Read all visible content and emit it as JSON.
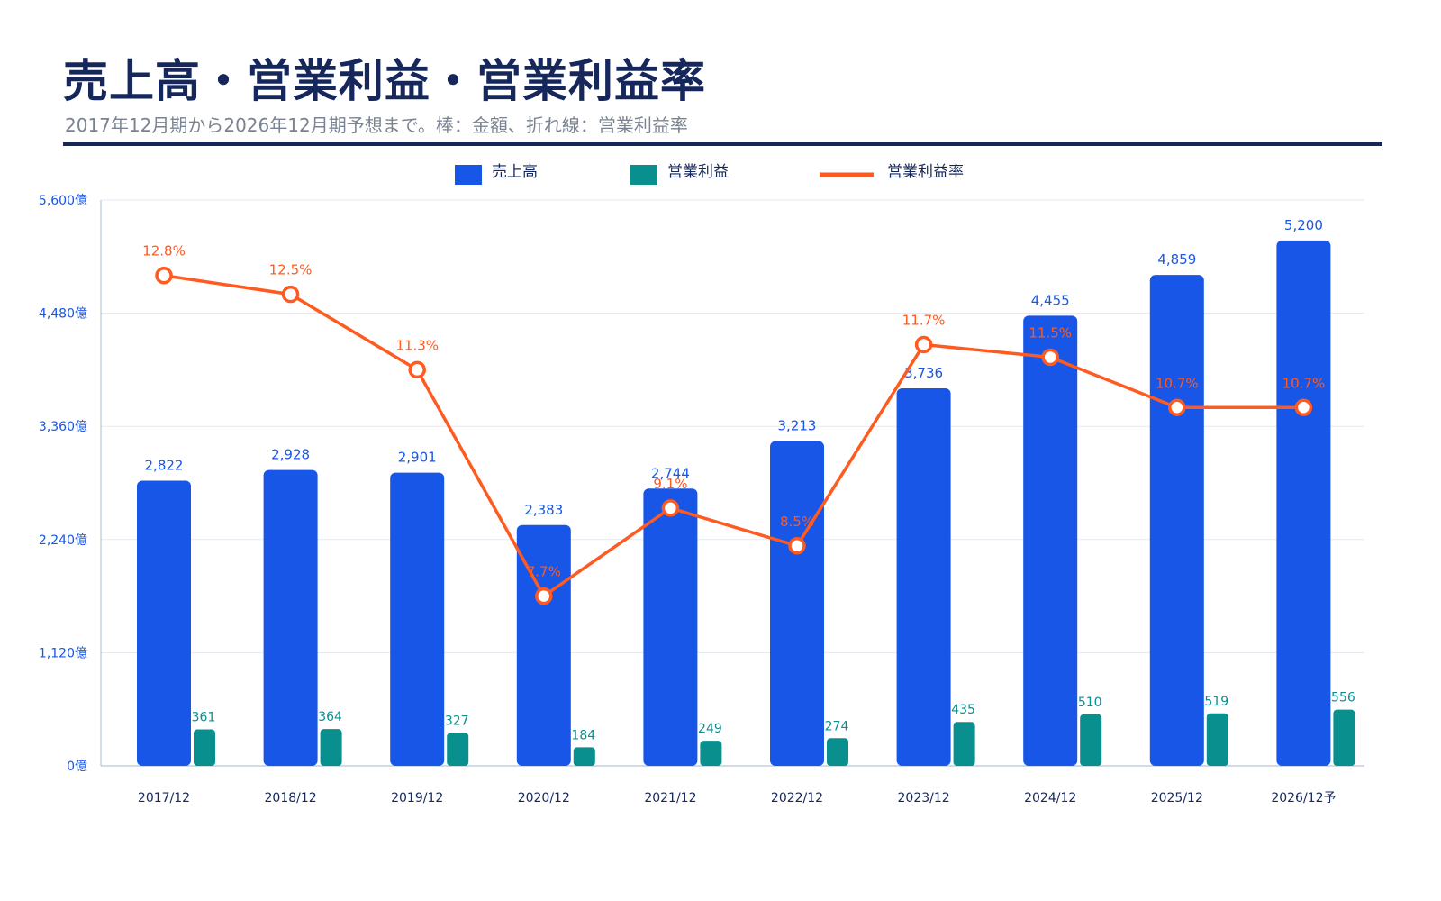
{
  "header": {
    "title": "売上高・営業利益・営業利益率",
    "subtitle": "2017年12月期から2026年12月期予想まで。棒：金額、折れ線：営業利益率"
  },
  "colors": {
    "title": "#16275c",
    "revenue": "#1756e6",
    "operating_profit": "#0a8f8f",
    "margin_line": "#ff5a1f",
    "axis_text": "#1756e6",
    "category_text": "#16275c",
    "grid": "#e3e8f2"
  },
  "chart_data": {
    "type": "bar",
    "title": "売上高・営業利益・営業利益率",
    "categories": [
      "2017/12",
      "2018/12",
      "2019/12",
      "2020/12",
      "2021/12",
      "2022/12",
      "2023/12",
      "2024/12",
      "2025/12",
      "2026/12予"
    ],
    "series": [
      {
        "name": "売上高",
        "kind": "bar",
        "axis": "left",
        "values": [
          2822,
          2928,
          2901,
          2383,
          2744,
          3213,
          3736,
          4455,
          4859,
          5200
        ],
        "labels": [
          "2,822",
          "2,928",
          "2,901",
          "2,383",
          "2,744",
          "3,213",
          "3,736",
          "4,455",
          "4,859",
          "5,200"
        ]
      },
      {
        "name": "営業利益",
        "kind": "bar",
        "axis": "left",
        "values": [
          361,
          364,
          327,
          184,
          249,
          274,
          435,
          510,
          519,
          556
        ],
        "labels": [
          "361",
          "364",
          "327",
          "184",
          "249",
          "274",
          "435",
          "510",
          "519",
          "556"
        ]
      },
      {
        "name": "営業利益率",
        "kind": "line",
        "axis": "right",
        "unit": "%",
        "values": [
          12.8,
          12.5,
          11.3,
          7.7,
          9.1,
          8.5,
          11.7,
          11.5,
          10.7,
          10.7
        ],
        "labels": [
          "12.8%",
          "12.5%",
          "11.3%",
          "7.7%",
          "9.1%",
          "8.5%",
          "11.7%",
          "11.5%",
          "10.7%",
          "10.7%"
        ]
      }
    ],
    "yaxis": {
      "ylim": [
        0,
        5600
      ],
      "ticks": [
        0,
        1120,
        2240,
        3360,
        4480,
        5600
      ],
      "tick_labels": [
        "0億",
        "1,120億",
        "2,240億",
        "3,360億",
        "4,480億",
        "5,600億"
      ]
    },
    "margin_axis_hidden": {
      "ylim": [
        5,
        14
      ]
    },
    "legend": [
      "売上高",
      "営業利益",
      "営業利益率"
    ],
    "legend_position": "top-center",
    "grid": true
  }
}
